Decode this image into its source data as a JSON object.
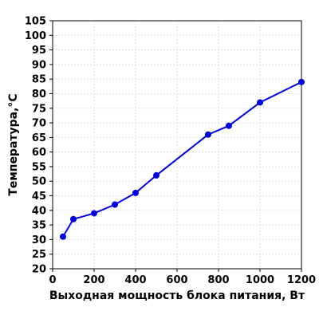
{
  "chart_data": {
    "type": "line",
    "xlabel": "Выходная мощность блока питания, Вт",
    "ylabel": "Температура,°С",
    "xlim": [
      0,
      1200
    ],
    "ylim": [
      20,
      105
    ],
    "x_ticks": [
      0,
      200,
      400,
      600,
      800,
      1000,
      1200
    ],
    "y_ticks": [
      20,
      25,
      30,
      35,
      40,
      45,
      50,
      55,
      60,
      65,
      70,
      75,
      80,
      85,
      90,
      95,
      100,
      105
    ],
    "grid": true,
    "series": [
      {
        "color": "#0000e0",
        "x": [
          50,
          100,
          200,
          300,
          400,
          500,
          750,
          850,
          1000,
          1200
        ],
        "y": [
          31,
          37,
          39,
          42,
          46,
          52,
          66,
          69,
          77,
          84
        ]
      }
    ]
  }
}
